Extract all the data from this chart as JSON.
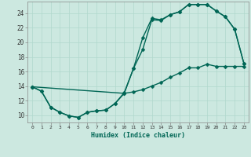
{
  "xlabel": "Humidex (Indice chaleur)",
  "background_color": "#cce8e0",
  "grid_color": "#b0d8cc",
  "line_color": "#006655",
  "xlim": [
    -0.5,
    23.5
  ],
  "ylim": [
    9.0,
    25.6
  ],
  "xticks": [
    0,
    1,
    2,
    3,
    4,
    5,
    6,
    7,
    8,
    9,
    10,
    11,
    12,
    13,
    14,
    15,
    16,
    17,
    18,
    19,
    20,
    21,
    22,
    23
  ],
  "yticks": [
    10,
    12,
    14,
    16,
    18,
    20,
    22,
    24
  ],
  "curve1_x": [
    0,
    1,
    2,
    3,
    4,
    5,
    6,
    7,
    8,
    9,
    10,
    11,
    12,
    13,
    14,
    15,
    16,
    17,
    18,
    19,
    20,
    21,
    22,
    23
  ],
  "curve1_y": [
    13.9,
    13.3,
    11.1,
    10.4,
    9.9,
    9.7,
    10.4,
    10.6,
    10.7,
    11.6,
    13.1,
    16.4,
    20.6,
    23.3,
    23.1,
    23.8,
    24.2,
    25.2,
    25.2,
    25.2,
    24.3,
    23.5,
    21.8,
    17.1
  ],
  "curve2_x": [
    0,
    1,
    2,
    3,
    4,
    5,
    6,
    7,
    8,
    9,
    10,
    11,
    12,
    13,
    14,
    15,
    16,
    17,
    18,
    19,
    20,
    21,
    22,
    23
  ],
  "curve2_y": [
    13.9,
    13.3,
    11.1,
    10.4,
    9.9,
    9.7,
    10.4,
    10.6,
    10.7,
    11.6,
    13.0,
    13.2,
    13.5,
    14.0,
    14.5,
    15.2,
    15.8,
    16.5,
    16.5,
    17.0,
    16.7,
    16.7,
    16.7,
    16.7
  ],
  "curve3_x": [
    0,
    10,
    11,
    12,
    13,
    14,
    15,
    16,
    17,
    18,
    19,
    20,
    21,
    22,
    23
  ],
  "curve3_y": [
    13.9,
    13.0,
    16.4,
    19.0,
    23.1,
    23.0,
    23.8,
    24.2,
    25.2,
    25.2,
    25.2,
    24.3,
    23.5,
    21.8,
    17.1
  ]
}
